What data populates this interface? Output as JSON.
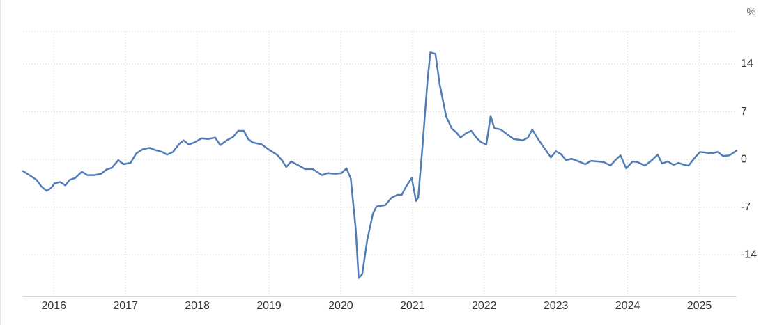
{
  "chart_data": {
    "type": "line",
    "y_label": "%",
    "color": "#4f7db8",
    "grid": true,
    "xlim": [
      2015.57,
      2025.52
    ],
    "ylim": [
      -20.1,
      18.8
    ],
    "xticks": [
      2016,
      2017,
      2018,
      2019,
      2020,
      2021,
      2022,
      2023,
      2024,
      2025
    ],
    "yticks": [
      -14,
      -7,
      0,
      7,
      14
    ],
    "x": [
      2015.57,
      2015.69,
      2015.76,
      2015.83,
      2015.9,
      2015.96,
      2016.01,
      2016.09,
      2016.16,
      2016.22,
      2016.3,
      2016.39,
      2016.47,
      2016.56,
      2016.66,
      2016.73,
      2016.81,
      2016.9,
      2016.97,
      2017.07,
      2017.15,
      2017.24,
      2017.33,
      2017.41,
      2017.51,
      2017.58,
      2017.66,
      2017.75,
      2017.81,
      2017.88,
      2017.96,
      2018.06,
      2018.15,
      2018.25,
      2018.32,
      2018.41,
      2018.5,
      2018.57,
      2018.65,
      2018.71,
      2018.77,
      2018.9,
      2018.99,
      2019.11,
      2019.18,
      2019.24,
      2019.31,
      2019.4,
      2019.5,
      2019.61,
      2019.68,
      2019.74,
      2019.82,
      2019.92,
      2020.01,
      2020.08,
      2020.14,
      2020.21,
      2020.25,
      2020.3,
      2020.37,
      2020.45,
      2020.5,
      2020.62,
      2020.71,
      2020.79,
      2020.85,
      2020.91,
      2020.99,
      2021.05,
      2021.08,
      2021.14,
      2021.21,
      2021.25,
      2021.32,
      2021.38,
      2021.47,
      2021.55,
      2021.61,
      2021.67,
      2021.74,
      2021.82,
      2021.89,
      2021.96,
      2022.03,
      2022.09,
      2022.14,
      2022.23,
      2022.32,
      2022.41,
      2022.54,
      2022.61,
      2022.67,
      2022.75,
      2022.85,
      2022.93,
      2023.0,
      2023.07,
      2023.14,
      2023.22,
      2023.32,
      2023.41,
      2023.49,
      2023.59,
      2023.67,
      2023.76,
      2023.83,
      2023.9,
      2023.98,
      2024.07,
      2024.14,
      2024.24,
      2024.34,
      2024.42,
      2024.48,
      2024.56,
      2024.64,
      2024.71,
      2024.79,
      2024.85,
      2024.94,
      2025.01,
      2025.1,
      2025.16,
      2025.26,
      2025.33,
      2025.42,
      2025.52
    ],
    "values": [
      -1.7,
      -2.5,
      -3.0,
      -4.0,
      -4.6,
      -4.2,
      -3.5,
      -3.3,
      -3.8,
      -3.0,
      -2.7,
      -1.8,
      -2.3,
      -2.3,
      -2.1,
      -1.5,
      -1.2,
      -0.1,
      -0.7,
      -0.5,
      0.9,
      1.5,
      1.7,
      1.4,
      1.1,
      0.7,
      1.1,
      2.3,
      2.8,
      2.2,
      2.5,
      3.1,
      3.0,
      3.2,
      2.1,
      2.8,
      3.3,
      4.2,
      4.2,
      3.0,
      2.5,
      2.2,
      1.5,
      0.7,
      -0.1,
      -1.1,
      -0.3,
      -0.8,
      -1.4,
      -1.4,
      -1.9,
      -2.3,
      -2.0,
      -2.1,
      -2.0,
      -1.3,
      -2.8,
      -10.3,
      -17.4,
      -16.8,
      -11.8,
      -7.9,
      -6.9,
      -6.7,
      -5.6,
      -5.2,
      -5.2,
      -4.0,
      -2.7,
      -6.1,
      -5.6,
      1.9,
      11.6,
      15.7,
      15.5,
      11.0,
      6.3,
      4.5,
      4.0,
      3.2,
      3.8,
      4.2,
      3.2,
      2.5,
      2.2,
      6.4,
      4.6,
      4.4,
      3.7,
      3.0,
      2.8,
      3.2,
      4.4,
      3.0,
      1.5,
      0.3,
      1.2,
      0.8,
      -0.1,
      0.1,
      -0.3,
      -0.7,
      -0.2,
      -0.3,
      -0.4,
      -0.9,
      -0.1,
      0.6,
      -1.3,
      -0.3,
      -0.4,
      -0.9,
      -0.1,
      0.7,
      -0.6,
      -0.3,
      -0.8,
      -0.5,
      -0.8,
      -0.9,
      0.3,
      1.1,
      1.0,
      0.9,
      1.1,
      0.5,
      0.6,
      1.3
    ]
  }
}
